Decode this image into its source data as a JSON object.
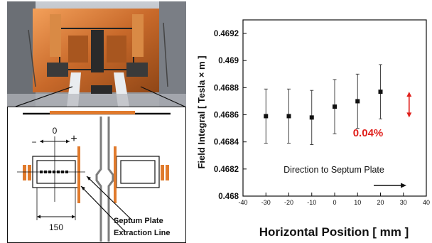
{
  "schematic": {
    "zero_label": "0",
    "minus_label": "−",
    "plus_label": "+",
    "width_label": "150",
    "septum_label": "Septum Plate",
    "extraction_label": "Extraction Line"
  },
  "colors": {
    "copper": "#e07a2c",
    "marker": "#111111",
    "highlight": "#e0201c"
  },
  "chart_data": {
    "type": "scatter",
    "xlabel": "Horizontal Position [ mm ]",
    "ylabel": "Field Integral [ Tesla × m ]",
    "xlim": [
      -40,
      40
    ],
    "ylim": [
      0.468,
      0.4693
    ],
    "x_ticks": [
      -40,
      -30,
      -20,
      -10,
      0,
      10,
      20,
      30,
      40
    ],
    "y_ticks": [
      0.468,
      0.4682,
      0.4684,
      0.4686,
      0.4688,
      0.469,
      0.4692
    ],
    "y_tick_labels": [
      "0.468",
      "0.4682",
      "0.4684",
      "0.4686",
      "0.4688",
      "0.469",
      "0.4692"
    ],
    "points": [
      {
        "x": -30,
        "y": 0.46859,
        "err": 0.0002
      },
      {
        "x": -20,
        "y": 0.46859,
        "err": 0.0002
      },
      {
        "x": -10,
        "y": 0.46858,
        "err": 0.0002
      },
      {
        "x": 0,
        "y": 0.46866,
        "err": 0.0002
      },
      {
        "x": 10,
        "y": 0.4687,
        "err": 0.0002
      },
      {
        "x": 20,
        "y": 0.46877,
        "err": 0.0002
      }
    ],
    "annotations": {
      "variation_label": "0.04%",
      "direction_label": "Direction to Septum Plate"
    },
    "grid": false
  }
}
